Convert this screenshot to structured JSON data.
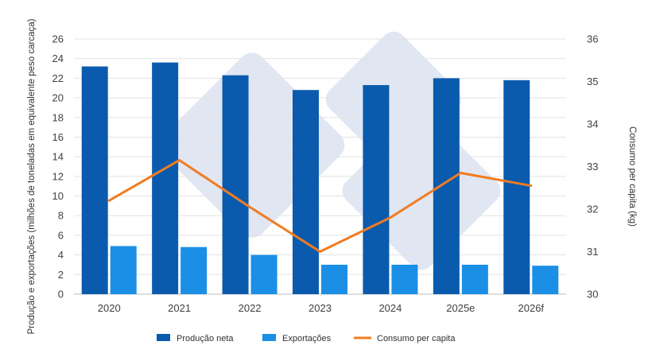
{
  "chart_data": {
    "type": "bar",
    "categories": [
      "2020",
      "2021",
      "2022",
      "2023",
      "2024",
      "2025e",
      "2026f"
    ],
    "series": [
      {
        "name": "Produção neta",
        "kind": "bar",
        "axis": "left",
        "color": "#0a5bad",
        "values": [
          23.2,
          23.6,
          22.3,
          20.8,
          21.3,
          22.0,
          21.8
        ]
      },
      {
        "name": "Exportações",
        "kind": "bar",
        "axis": "left",
        "color": "#1b8fe6",
        "values": [
          4.9,
          4.8,
          4.0,
          3.0,
          3.0,
          3.0,
          2.9
        ]
      },
      {
        "name": "Consumo per capita",
        "kind": "line",
        "axis": "right",
        "color": "#f07c22",
        "values": [
          32.2,
          33.15,
          32.05,
          31.0,
          31.8,
          32.85,
          32.55
        ]
      }
    ],
    "ylabel": "Produção e exportações (milhões de toneladas em equivalente peso carcaça)",
    "y2label": "Consumo per capita (kg)",
    "ylim": [
      0,
      26
    ],
    "yticks": [
      0,
      2,
      4,
      6,
      8,
      10,
      12,
      14,
      16,
      18,
      20,
      22,
      24,
      26
    ],
    "y2lim": [
      30,
      36
    ],
    "y2ticks": [
      30,
      31,
      32,
      33,
      34,
      35,
      36
    ],
    "grid": true,
    "legend_position": "bottom"
  }
}
